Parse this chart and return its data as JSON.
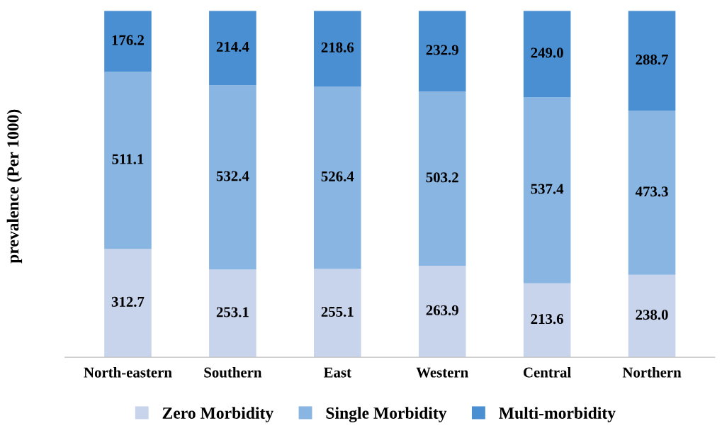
{
  "chart_data": {
    "type": "bar",
    "stacked": true,
    "ylabel": "prevalence (Per 1000)",
    "categories": [
      "North-eastern",
      "Southern",
      "East",
      "Western",
      "Central",
      "Northern"
    ],
    "series": [
      {
        "name": "Zero Morbidity",
        "color": "#c8d3ec",
        "values": [
          312.7,
          253.1,
          255.1,
          263.9,
          213.6,
          238.0
        ],
        "value_labels": [
          "312.7",
          "253.1",
          "255.1",
          "263.9",
          "213.6",
          "238.0"
        ]
      },
      {
        "name": "Single Morbidity",
        "color": "#88b5e1",
        "values": [
          511.1,
          532.4,
          526.4,
          503.2,
          537.4,
          473.3
        ],
        "value_labels": [
          "511.1",
          "532.4",
          "526.4",
          "503.2",
          "537.4",
          "473.3"
        ]
      },
      {
        "name": "Multi-morbidity",
        "color": "#4b8fd3",
        "values": [
          176.2,
          214.4,
          218.6,
          232.9,
          249.0,
          288.7
        ],
        "value_labels": [
          "176.2",
          "214.4",
          "218.6",
          "232.9",
          "249.0",
          "288.7"
        ]
      }
    ],
    "legend": "bottom",
    "grid": false
  }
}
